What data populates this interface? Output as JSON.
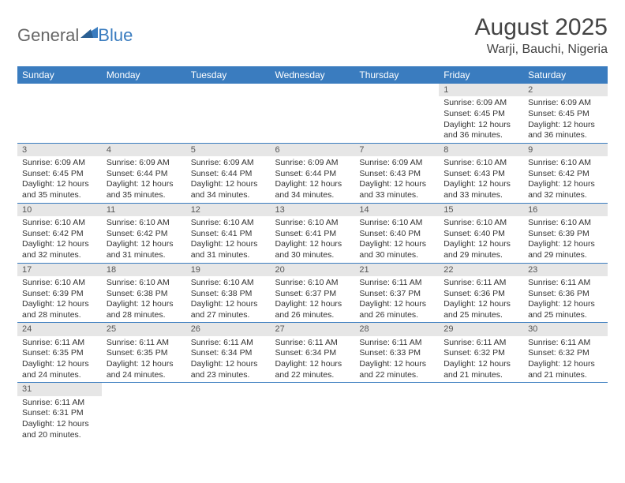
{
  "brand": {
    "part1": "General",
    "part2": "Blue"
  },
  "title": "August 2025",
  "location": "Warji, Bauchi, Nigeria",
  "colors": {
    "header_bg": "#3a7cbf",
    "header_text": "#ffffff",
    "daynum_bg": "#e6e6e6",
    "rule": "#3a7cbf",
    "text": "#333333"
  },
  "weekdays": [
    "Sunday",
    "Monday",
    "Tuesday",
    "Wednesday",
    "Thursday",
    "Friday",
    "Saturday"
  ],
  "weeks": [
    [
      {
        "empty": true
      },
      {
        "empty": true
      },
      {
        "empty": true
      },
      {
        "empty": true
      },
      {
        "empty": true
      },
      {
        "num": "1",
        "sunrise": "Sunrise: 6:09 AM",
        "sunset": "Sunset: 6:45 PM",
        "day1": "Daylight: 12 hours",
        "day2": "and 36 minutes."
      },
      {
        "num": "2",
        "sunrise": "Sunrise: 6:09 AM",
        "sunset": "Sunset: 6:45 PM",
        "day1": "Daylight: 12 hours",
        "day2": "and 36 minutes."
      }
    ],
    [
      {
        "num": "3",
        "sunrise": "Sunrise: 6:09 AM",
        "sunset": "Sunset: 6:45 PM",
        "day1": "Daylight: 12 hours",
        "day2": "and 35 minutes."
      },
      {
        "num": "4",
        "sunrise": "Sunrise: 6:09 AM",
        "sunset": "Sunset: 6:44 PM",
        "day1": "Daylight: 12 hours",
        "day2": "and 35 minutes."
      },
      {
        "num": "5",
        "sunrise": "Sunrise: 6:09 AM",
        "sunset": "Sunset: 6:44 PM",
        "day1": "Daylight: 12 hours",
        "day2": "and 34 minutes."
      },
      {
        "num": "6",
        "sunrise": "Sunrise: 6:09 AM",
        "sunset": "Sunset: 6:44 PM",
        "day1": "Daylight: 12 hours",
        "day2": "and 34 minutes."
      },
      {
        "num": "7",
        "sunrise": "Sunrise: 6:09 AM",
        "sunset": "Sunset: 6:43 PM",
        "day1": "Daylight: 12 hours",
        "day2": "and 33 minutes."
      },
      {
        "num": "8",
        "sunrise": "Sunrise: 6:10 AM",
        "sunset": "Sunset: 6:43 PM",
        "day1": "Daylight: 12 hours",
        "day2": "and 33 minutes."
      },
      {
        "num": "9",
        "sunrise": "Sunrise: 6:10 AM",
        "sunset": "Sunset: 6:42 PM",
        "day1": "Daylight: 12 hours",
        "day2": "and 32 minutes."
      }
    ],
    [
      {
        "num": "10",
        "sunrise": "Sunrise: 6:10 AM",
        "sunset": "Sunset: 6:42 PM",
        "day1": "Daylight: 12 hours",
        "day2": "and 32 minutes."
      },
      {
        "num": "11",
        "sunrise": "Sunrise: 6:10 AM",
        "sunset": "Sunset: 6:42 PM",
        "day1": "Daylight: 12 hours",
        "day2": "and 31 minutes."
      },
      {
        "num": "12",
        "sunrise": "Sunrise: 6:10 AM",
        "sunset": "Sunset: 6:41 PM",
        "day1": "Daylight: 12 hours",
        "day2": "and 31 minutes."
      },
      {
        "num": "13",
        "sunrise": "Sunrise: 6:10 AM",
        "sunset": "Sunset: 6:41 PM",
        "day1": "Daylight: 12 hours",
        "day2": "and 30 minutes."
      },
      {
        "num": "14",
        "sunrise": "Sunrise: 6:10 AM",
        "sunset": "Sunset: 6:40 PM",
        "day1": "Daylight: 12 hours",
        "day2": "and 30 minutes."
      },
      {
        "num": "15",
        "sunrise": "Sunrise: 6:10 AM",
        "sunset": "Sunset: 6:40 PM",
        "day1": "Daylight: 12 hours",
        "day2": "and 29 minutes."
      },
      {
        "num": "16",
        "sunrise": "Sunrise: 6:10 AM",
        "sunset": "Sunset: 6:39 PM",
        "day1": "Daylight: 12 hours",
        "day2": "and 29 minutes."
      }
    ],
    [
      {
        "num": "17",
        "sunrise": "Sunrise: 6:10 AM",
        "sunset": "Sunset: 6:39 PM",
        "day1": "Daylight: 12 hours",
        "day2": "and 28 minutes."
      },
      {
        "num": "18",
        "sunrise": "Sunrise: 6:10 AM",
        "sunset": "Sunset: 6:38 PM",
        "day1": "Daylight: 12 hours",
        "day2": "and 28 minutes."
      },
      {
        "num": "19",
        "sunrise": "Sunrise: 6:10 AM",
        "sunset": "Sunset: 6:38 PM",
        "day1": "Daylight: 12 hours",
        "day2": "and 27 minutes."
      },
      {
        "num": "20",
        "sunrise": "Sunrise: 6:10 AM",
        "sunset": "Sunset: 6:37 PM",
        "day1": "Daylight: 12 hours",
        "day2": "and 26 minutes."
      },
      {
        "num": "21",
        "sunrise": "Sunrise: 6:11 AM",
        "sunset": "Sunset: 6:37 PM",
        "day1": "Daylight: 12 hours",
        "day2": "and 26 minutes."
      },
      {
        "num": "22",
        "sunrise": "Sunrise: 6:11 AM",
        "sunset": "Sunset: 6:36 PM",
        "day1": "Daylight: 12 hours",
        "day2": "and 25 minutes."
      },
      {
        "num": "23",
        "sunrise": "Sunrise: 6:11 AM",
        "sunset": "Sunset: 6:36 PM",
        "day1": "Daylight: 12 hours",
        "day2": "and 25 minutes."
      }
    ],
    [
      {
        "num": "24",
        "sunrise": "Sunrise: 6:11 AM",
        "sunset": "Sunset: 6:35 PM",
        "day1": "Daylight: 12 hours",
        "day2": "and 24 minutes."
      },
      {
        "num": "25",
        "sunrise": "Sunrise: 6:11 AM",
        "sunset": "Sunset: 6:35 PM",
        "day1": "Daylight: 12 hours",
        "day2": "and 24 minutes."
      },
      {
        "num": "26",
        "sunrise": "Sunrise: 6:11 AM",
        "sunset": "Sunset: 6:34 PM",
        "day1": "Daylight: 12 hours",
        "day2": "and 23 minutes."
      },
      {
        "num": "27",
        "sunrise": "Sunrise: 6:11 AM",
        "sunset": "Sunset: 6:34 PM",
        "day1": "Daylight: 12 hours",
        "day2": "and 22 minutes."
      },
      {
        "num": "28",
        "sunrise": "Sunrise: 6:11 AM",
        "sunset": "Sunset: 6:33 PM",
        "day1": "Daylight: 12 hours",
        "day2": "and 22 minutes."
      },
      {
        "num": "29",
        "sunrise": "Sunrise: 6:11 AM",
        "sunset": "Sunset: 6:32 PM",
        "day1": "Daylight: 12 hours",
        "day2": "and 21 minutes."
      },
      {
        "num": "30",
        "sunrise": "Sunrise: 6:11 AM",
        "sunset": "Sunset: 6:32 PM",
        "day1": "Daylight: 12 hours",
        "day2": "and 21 minutes."
      }
    ],
    [
      {
        "num": "31",
        "sunrise": "Sunrise: 6:11 AM",
        "sunset": "Sunset: 6:31 PM",
        "day1": "Daylight: 12 hours",
        "day2": "and 20 minutes."
      },
      {
        "empty": true
      },
      {
        "empty": true
      },
      {
        "empty": true
      },
      {
        "empty": true
      },
      {
        "empty": true
      },
      {
        "empty": true
      }
    ]
  ]
}
